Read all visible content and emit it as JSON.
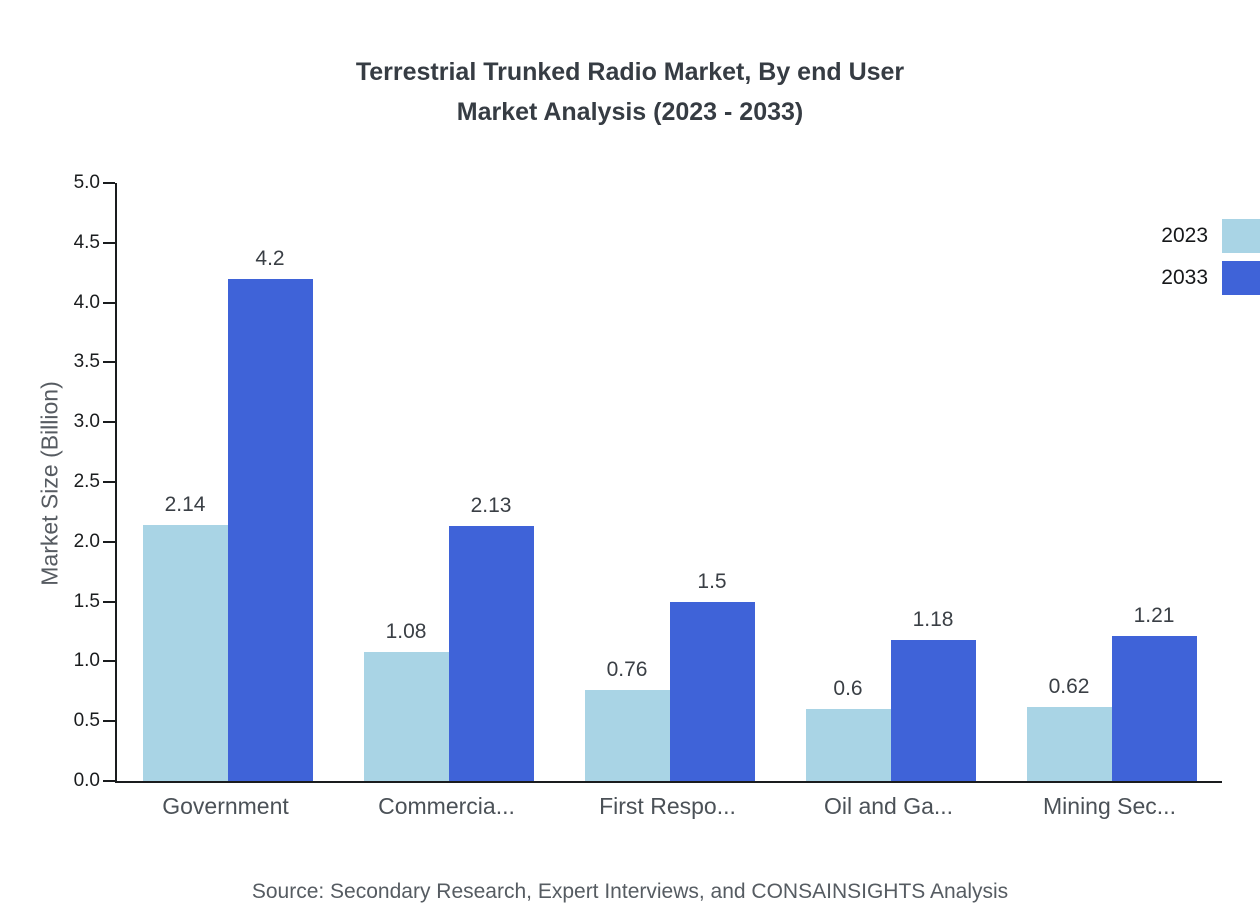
{
  "title": {
    "line1": "Terrestrial Trunked Radio Market, By end User",
    "line2": "Market Analysis (2023 - 2033)"
  },
  "chart_data": {
    "type": "bar",
    "categories": [
      "Government",
      "Commercia...",
      "First Respo...",
      "Oil and Ga...",
      "Mining Sec..."
    ],
    "series": [
      {
        "name": "2023",
        "color": "#a9d4e5",
        "values": [
          2.14,
          1.08,
          0.76,
          0.6,
          0.62
        ]
      },
      {
        "name": "2033",
        "color": "#3f63d8",
        "values": [
          4.2,
          2.13,
          1.5,
          1.18,
          1.21
        ]
      }
    ],
    "title": "Terrestrial Trunked Radio Market, By end User Market Analysis (2023 - 2033)",
    "xlabel": "",
    "ylabel": "Market Size (Billion)",
    "ylim": [
      0,
      5
    ],
    "ytick_step": 0.5,
    "grid": false,
    "legend_position": "top-right"
  },
  "source": "Source: Secondary Research, Expert Interviews, and CONSAINSIGHTS Analysis"
}
